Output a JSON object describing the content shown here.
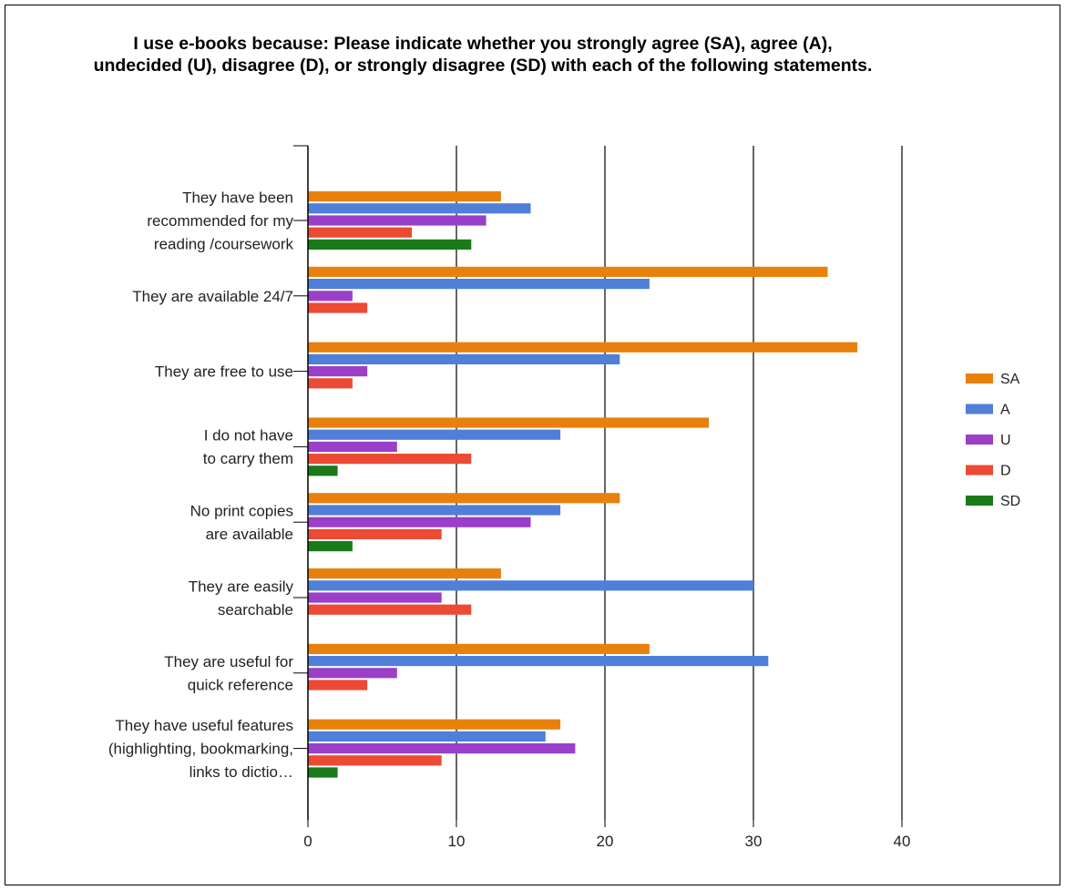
{
  "chart_data": {
    "type": "bar",
    "orientation": "horizontal",
    "title": "I use e-books because:   Please indicate whether you strongly agree (SA), agree (A), undecided (U), disagree (D), or strongly disagree (SD) with each of the following statements.",
    "categories": [
      [
        "They have been",
        "recommended for my",
        "reading /coursework"
      ],
      [
        "They are available 24/7"
      ],
      [
        "They are free to use"
      ],
      [
        "I do not have",
        "to carry them"
      ],
      [
        "No print copies",
        "are available"
      ],
      [
        "They are easily",
        "searchable"
      ],
      [
        "They are useful for",
        "quick reference"
      ],
      [
        "They have useful features",
        "(highlighting, bookmarking,",
        "links to dictio…"
      ]
    ],
    "series": [
      {
        "name": "SA",
        "color": "#e8810c",
        "values": [
          13,
          35,
          37,
          27,
          21,
          13,
          23,
          17
        ]
      },
      {
        "name": "A",
        "color": "#4f7fd8",
        "values": [
          15,
          23,
          21,
          17,
          17,
          30,
          31,
          16
        ]
      },
      {
        "name": "U",
        "color": "#9b3fc8",
        "values": [
          12,
          3,
          4,
          6,
          15,
          9,
          6,
          18
        ]
      },
      {
        "name": "D",
        "color": "#ec4a34",
        "values": [
          7,
          4,
          3,
          11,
          9,
          11,
          4,
          9
        ]
      },
      {
        "name": "SD",
        "color": "#1a7a1a",
        "values": [
          11,
          0,
          0,
          2,
          3,
          0,
          0,
          2
        ]
      }
    ],
    "xlim": [
      0,
      40
    ],
    "xticks": [
      0,
      10,
      20,
      30,
      40
    ],
    "grid": true,
    "legend_position": "right"
  }
}
